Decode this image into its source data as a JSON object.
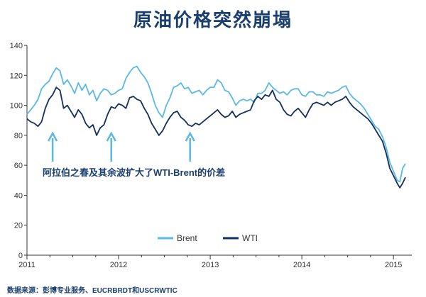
{
  "header": {
    "title": "原油价格突然崩塌"
  },
  "footer": {
    "source": "数据来源：彭博专业服务、EUCRBRDT和USCRWTIC"
  },
  "colors": {
    "brent": "#5ab9e4",
    "wti": "#13305c",
    "arrow": "#5ab9e4",
    "text": "#1a3e6e",
    "axis": "#333333"
  },
  "chart_data": {
    "type": "line",
    "title": "原油价格突然崩塌",
    "xlabel": "",
    "ylabel": "",
    "xlim": [
      2011.0,
      2015.2
    ],
    "ylim": [
      0,
      140
    ],
    "yticks": [
      0,
      20,
      40,
      60,
      80,
      100,
      120,
      140
    ],
    "xticks": [
      {
        "value": 2011.0,
        "label": "2011"
      },
      {
        "value": 2012.0,
        "label": "2012"
      },
      {
        "value": 2013.0,
        "label": "2013"
      },
      {
        "value": 2014.0,
        "label": "2014"
      },
      {
        "value": 2015.0,
        "label": "2015"
      }
    ],
    "grid": false,
    "legend_position": "bottom",
    "annotation": {
      "text": "阿拉伯之春及其余波扩大了WTI-Brent的价差",
      "arrow_x": [
        2011.28,
        2011.92,
        2012.78
      ]
    },
    "series": [
      {
        "name": "Brent",
        "points": [
          [
            2011.0,
            94
          ],
          [
            2011.04,
            97
          ],
          [
            2011.08,
            100
          ],
          [
            2011.12,
            104
          ],
          [
            2011.16,
            111
          ],
          [
            2011.2,
            114
          ],
          [
            2011.24,
            116
          ],
          [
            2011.28,
            121
          ],
          [
            2011.32,
            125
          ],
          [
            2011.36,
            123
          ],
          [
            2011.4,
            114
          ],
          [
            2011.44,
            117
          ],
          [
            2011.48,
            113
          ],
          [
            2011.52,
            108
          ],
          [
            2011.56,
            115
          ],
          [
            2011.6,
            110
          ],
          [
            2011.64,
            114
          ],
          [
            2011.68,
            107
          ],
          [
            2011.72,
            110
          ],
          [
            2011.76,
            103
          ],
          [
            2011.8,
            108
          ],
          [
            2011.84,
            111
          ],
          [
            2011.88,
            110
          ],
          [
            2011.92,
            107
          ],
          [
            2011.96,
            108
          ],
          [
            2012.0,
            110
          ],
          [
            2012.04,
            111
          ],
          [
            2012.08,
            118
          ],
          [
            2012.12,
            122
          ],
          [
            2012.16,
            125
          ],
          [
            2012.2,
            126
          ],
          [
            2012.24,
            122
          ],
          [
            2012.28,
            119
          ],
          [
            2012.32,
            115
          ],
          [
            2012.36,
            108
          ],
          [
            2012.4,
            100
          ],
          [
            2012.44,
            95
          ],
          [
            2012.48,
            92
          ],
          [
            2012.52,
            100
          ],
          [
            2012.56,
            105
          ],
          [
            2012.6,
            112
          ],
          [
            2012.64,
            113
          ],
          [
            2012.68,
            115
          ],
          [
            2012.72,
            111
          ],
          [
            2012.76,
            112
          ],
          [
            2012.8,
            108
          ],
          [
            2012.84,
            109
          ],
          [
            2012.88,
            110
          ],
          [
            2012.92,
            107
          ],
          [
            2012.96,
            110
          ],
          [
            2013.0,
            112
          ],
          [
            2013.04,
            112
          ],
          [
            2013.08,
            117
          ],
          [
            2013.12,
            115
          ],
          [
            2013.16,
            110
          ],
          [
            2013.2,
            109
          ],
          [
            2013.24,
            105
          ],
          [
            2013.28,
            100
          ],
          [
            2013.32,
            103
          ],
          [
            2013.36,
            104
          ],
          [
            2013.4,
            103
          ],
          [
            2013.44,
            104
          ],
          [
            2013.48,
            102
          ],
          [
            2013.52,
            108
          ],
          [
            2013.56,
            108
          ],
          [
            2013.6,
            110
          ],
          [
            2013.64,
            115
          ],
          [
            2013.68,
            112
          ],
          [
            2013.72,
            110
          ],
          [
            2013.76,
            108
          ],
          [
            2013.8,
            109
          ],
          [
            2013.84,
            107
          ],
          [
            2013.88,
            110
          ],
          [
            2013.92,
            111
          ],
          [
            2013.96,
            111
          ],
          [
            2014.0,
            107
          ],
          [
            2014.04,
            106
          ],
          [
            2014.08,
            109
          ],
          [
            2014.12,
            109
          ],
          [
            2014.16,
            107
          ],
          [
            2014.2,
            107
          ],
          [
            2014.24,
            106
          ],
          [
            2014.28,
            109
          ],
          [
            2014.32,
            108
          ],
          [
            2014.36,
            109
          ],
          [
            2014.4,
            110
          ],
          [
            2014.44,
            112
          ],
          [
            2014.48,
            113
          ],
          [
            2014.52,
            108
          ],
          [
            2014.56,
            105
          ],
          [
            2014.6,
            103
          ],
          [
            2014.64,
            101
          ],
          [
            2014.68,
            98
          ],
          [
            2014.72,
            94
          ],
          [
            2014.76,
            90
          ],
          [
            2014.8,
            86
          ],
          [
            2014.84,
            84
          ],
          [
            2014.88,
            79
          ],
          [
            2014.92,
            72
          ],
          [
            2014.96,
            62
          ],
          [
            2015.0,
            56
          ],
          [
            2015.04,
            50
          ],
          [
            2015.07,
            49
          ],
          [
            2015.1,
            58
          ],
          [
            2015.13,
            61
          ]
        ]
      },
      {
        "name": "WTI",
        "points": [
          [
            2011.0,
            91
          ],
          [
            2011.04,
            89
          ],
          [
            2011.08,
            88
          ],
          [
            2011.12,
            86
          ],
          [
            2011.16,
            89
          ],
          [
            2011.2,
            98
          ],
          [
            2011.24,
            104
          ],
          [
            2011.28,
            107
          ],
          [
            2011.32,
            112
          ],
          [
            2011.36,
            110
          ],
          [
            2011.4,
            98
          ],
          [
            2011.44,
            100
          ],
          [
            2011.48,
            96
          ],
          [
            2011.52,
            92
          ],
          [
            2011.56,
            97
          ],
          [
            2011.6,
            94
          ],
          [
            2011.64,
            88
          ],
          [
            2011.68,
            85
          ],
          [
            2011.72,
            87
          ],
          [
            2011.76,
            80
          ],
          [
            2011.8,
            85
          ],
          [
            2011.84,
            87
          ],
          [
            2011.88,
            94
          ],
          [
            2011.92,
            99
          ],
          [
            2011.96,
            98
          ],
          [
            2012.0,
            101
          ],
          [
            2012.04,
            100
          ],
          [
            2012.08,
            98
          ],
          [
            2012.12,
            105
          ],
          [
            2012.16,
            106
          ],
          [
            2012.2,
            104
          ],
          [
            2012.24,
            103
          ],
          [
            2012.28,
            98
          ],
          [
            2012.32,
            94
          ],
          [
            2012.36,
            88
          ],
          [
            2012.4,
            84
          ],
          [
            2012.44,
            80
          ],
          [
            2012.48,
            83
          ],
          [
            2012.52,
            88
          ],
          [
            2012.56,
            92
          ],
          [
            2012.6,
            95
          ],
          [
            2012.64,
            96
          ],
          [
            2012.68,
            92
          ],
          [
            2012.72,
            90
          ],
          [
            2012.76,
            87
          ],
          [
            2012.8,
            86
          ],
          [
            2012.84,
            88
          ],
          [
            2012.88,
            87
          ],
          [
            2012.92,
            89
          ],
          [
            2012.96,
            91
          ],
          [
            2013.0,
            93
          ],
          [
            2013.04,
            95
          ],
          [
            2013.08,
            97
          ],
          [
            2013.12,
            94
          ],
          [
            2013.16,
            92
          ],
          [
            2013.2,
            93
          ],
          [
            2013.24,
            96
          ],
          [
            2013.28,
            92
          ],
          [
            2013.32,
            94
          ],
          [
            2013.36,
            95
          ],
          [
            2013.4,
            96
          ],
          [
            2013.44,
            97
          ],
          [
            2013.48,
            103
          ],
          [
            2013.52,
            106
          ],
          [
            2013.56,
            104
          ],
          [
            2013.6,
            107
          ],
          [
            2013.64,
            106
          ],
          [
            2013.68,
            110
          ],
          [
            2013.72,
            104
          ],
          [
            2013.76,
            102
          ],
          [
            2013.8,
            97
          ],
          [
            2013.84,
            94
          ],
          [
            2013.88,
            93
          ],
          [
            2013.92,
            96
          ],
          [
            2013.96,
            98
          ],
          [
            2014.0,
            95
          ],
          [
            2014.04,
            92
          ],
          [
            2014.08,
            97
          ],
          [
            2014.12,
            101
          ],
          [
            2014.16,
            102
          ],
          [
            2014.2,
            101
          ],
          [
            2014.24,
            100
          ],
          [
            2014.28,
            102
          ],
          [
            2014.32,
            100
          ],
          [
            2014.36,
            102
          ],
          [
            2014.4,
            103
          ],
          [
            2014.44,
            104
          ],
          [
            2014.48,
            106
          ],
          [
            2014.52,
            102
          ],
          [
            2014.56,
            99
          ],
          [
            2014.6,
            97
          ],
          [
            2014.64,
            95
          ],
          [
            2014.68,
            93
          ],
          [
            2014.72,
            91
          ],
          [
            2014.76,
            88
          ],
          [
            2014.8,
            84
          ],
          [
            2014.84,
            80
          ],
          [
            2014.88,
            76
          ],
          [
            2014.92,
            68
          ],
          [
            2014.96,
            58
          ],
          [
            2015.0,
            53
          ],
          [
            2015.04,
            48
          ],
          [
            2015.07,
            45
          ],
          [
            2015.1,
            48
          ],
          [
            2015.13,
            52
          ]
        ]
      }
    ]
  }
}
